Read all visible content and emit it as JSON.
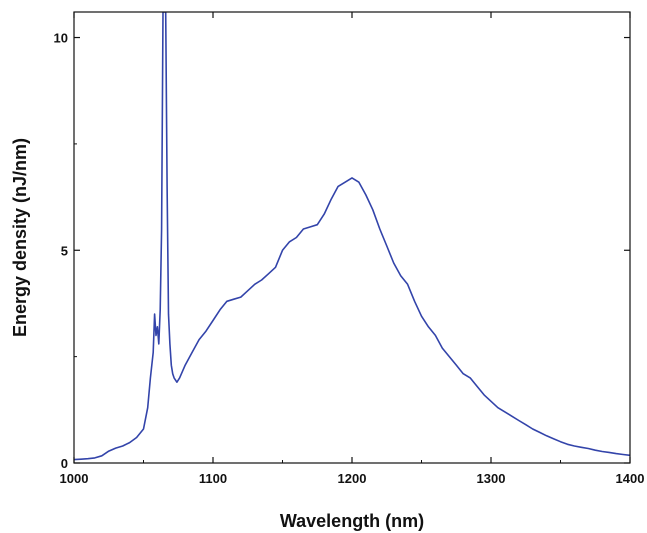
{
  "chart_data": {
    "type": "line",
    "xlabel": "Wavelength (nm)",
    "ylabel": "Energy density (nJ/nm)",
    "xlim": [
      1000,
      1400
    ],
    "ylim": [
      0,
      10.6
    ],
    "xticks": [
      1000,
      1100,
      1200,
      1300,
      1400
    ],
    "yticks": [
      0,
      5,
      10
    ],
    "xtick_labels": [
      "1000",
      "1100",
      "1200",
      "1300",
      "1400"
    ],
    "ytick_labels": [
      "0",
      "5",
      "10"
    ],
    "grid": false,
    "legend": "none",
    "colors": {
      "line": "#3344aa",
      "axis": "#111111"
    },
    "series": [
      {
        "x": [
          1000,
          1005,
          1010,
          1015,
          1020,
          1025,
          1030,
          1035,
          1040,
          1045,
          1050,
          1053,
          1055,
          1057,
          1058,
          1059,
          1060,
          1061,
          1062,
          1063,
          1064,
          1065,
          1066,
          1067,
          1068,
          1069,
          1070,
          1071,
          1072,
          1074,
          1076,
          1080,
          1085,
          1090,
          1095,
          1100,
          1105,
          1110,
          1115,
          1120,
          1125,
          1130,
          1135,
          1140,
          1145,
          1150,
          1155,
          1160,
          1165,
          1170,
          1175,
          1180,
          1185,
          1190,
          1195,
          1200,
          1205,
          1210,
          1215,
          1220,
          1225,
          1230,
          1235,
          1240,
          1245,
          1250,
          1255,
          1260,
          1265,
          1270,
          1275,
          1280,
          1285,
          1290,
          1295,
          1300,
          1305,
          1310,
          1315,
          1320,
          1325,
          1330,
          1335,
          1340,
          1345,
          1350,
          1355,
          1360,
          1365,
          1370,
          1375,
          1380,
          1385,
          1390,
          1395,
          1400
        ],
        "y": [
          0.08,
          0.09,
          0.1,
          0.12,
          0.17,
          0.28,
          0.35,
          0.4,
          0.48,
          0.6,
          0.8,
          1.3,
          2.0,
          2.6,
          3.5,
          3.0,
          3.2,
          2.8,
          3.6,
          5.5,
          10.6,
          10.6,
          10.6,
          6.5,
          3.5,
          2.8,
          2.3,
          2.1,
          2.0,
          1.9,
          2.0,
          2.3,
          2.6,
          2.9,
          3.1,
          3.35,
          3.6,
          3.8,
          3.85,
          3.9,
          4.05,
          4.2,
          4.3,
          4.45,
          4.6,
          5.0,
          5.2,
          5.3,
          5.5,
          5.55,
          5.6,
          5.85,
          6.2,
          6.5,
          6.6,
          6.7,
          6.6,
          6.3,
          5.95,
          5.5,
          5.1,
          4.7,
          4.4,
          4.2,
          3.8,
          3.45,
          3.2,
          3.0,
          2.7,
          2.5,
          2.3,
          2.1,
          2.0,
          1.8,
          1.6,
          1.45,
          1.3,
          1.2,
          1.1,
          1.0,
          0.9,
          0.8,
          0.72,
          0.64,
          0.57,
          0.5,
          0.44,
          0.4,
          0.37,
          0.34,
          0.3,
          0.27,
          0.25,
          0.22,
          0.2,
          0.18
        ]
      }
    ]
  }
}
